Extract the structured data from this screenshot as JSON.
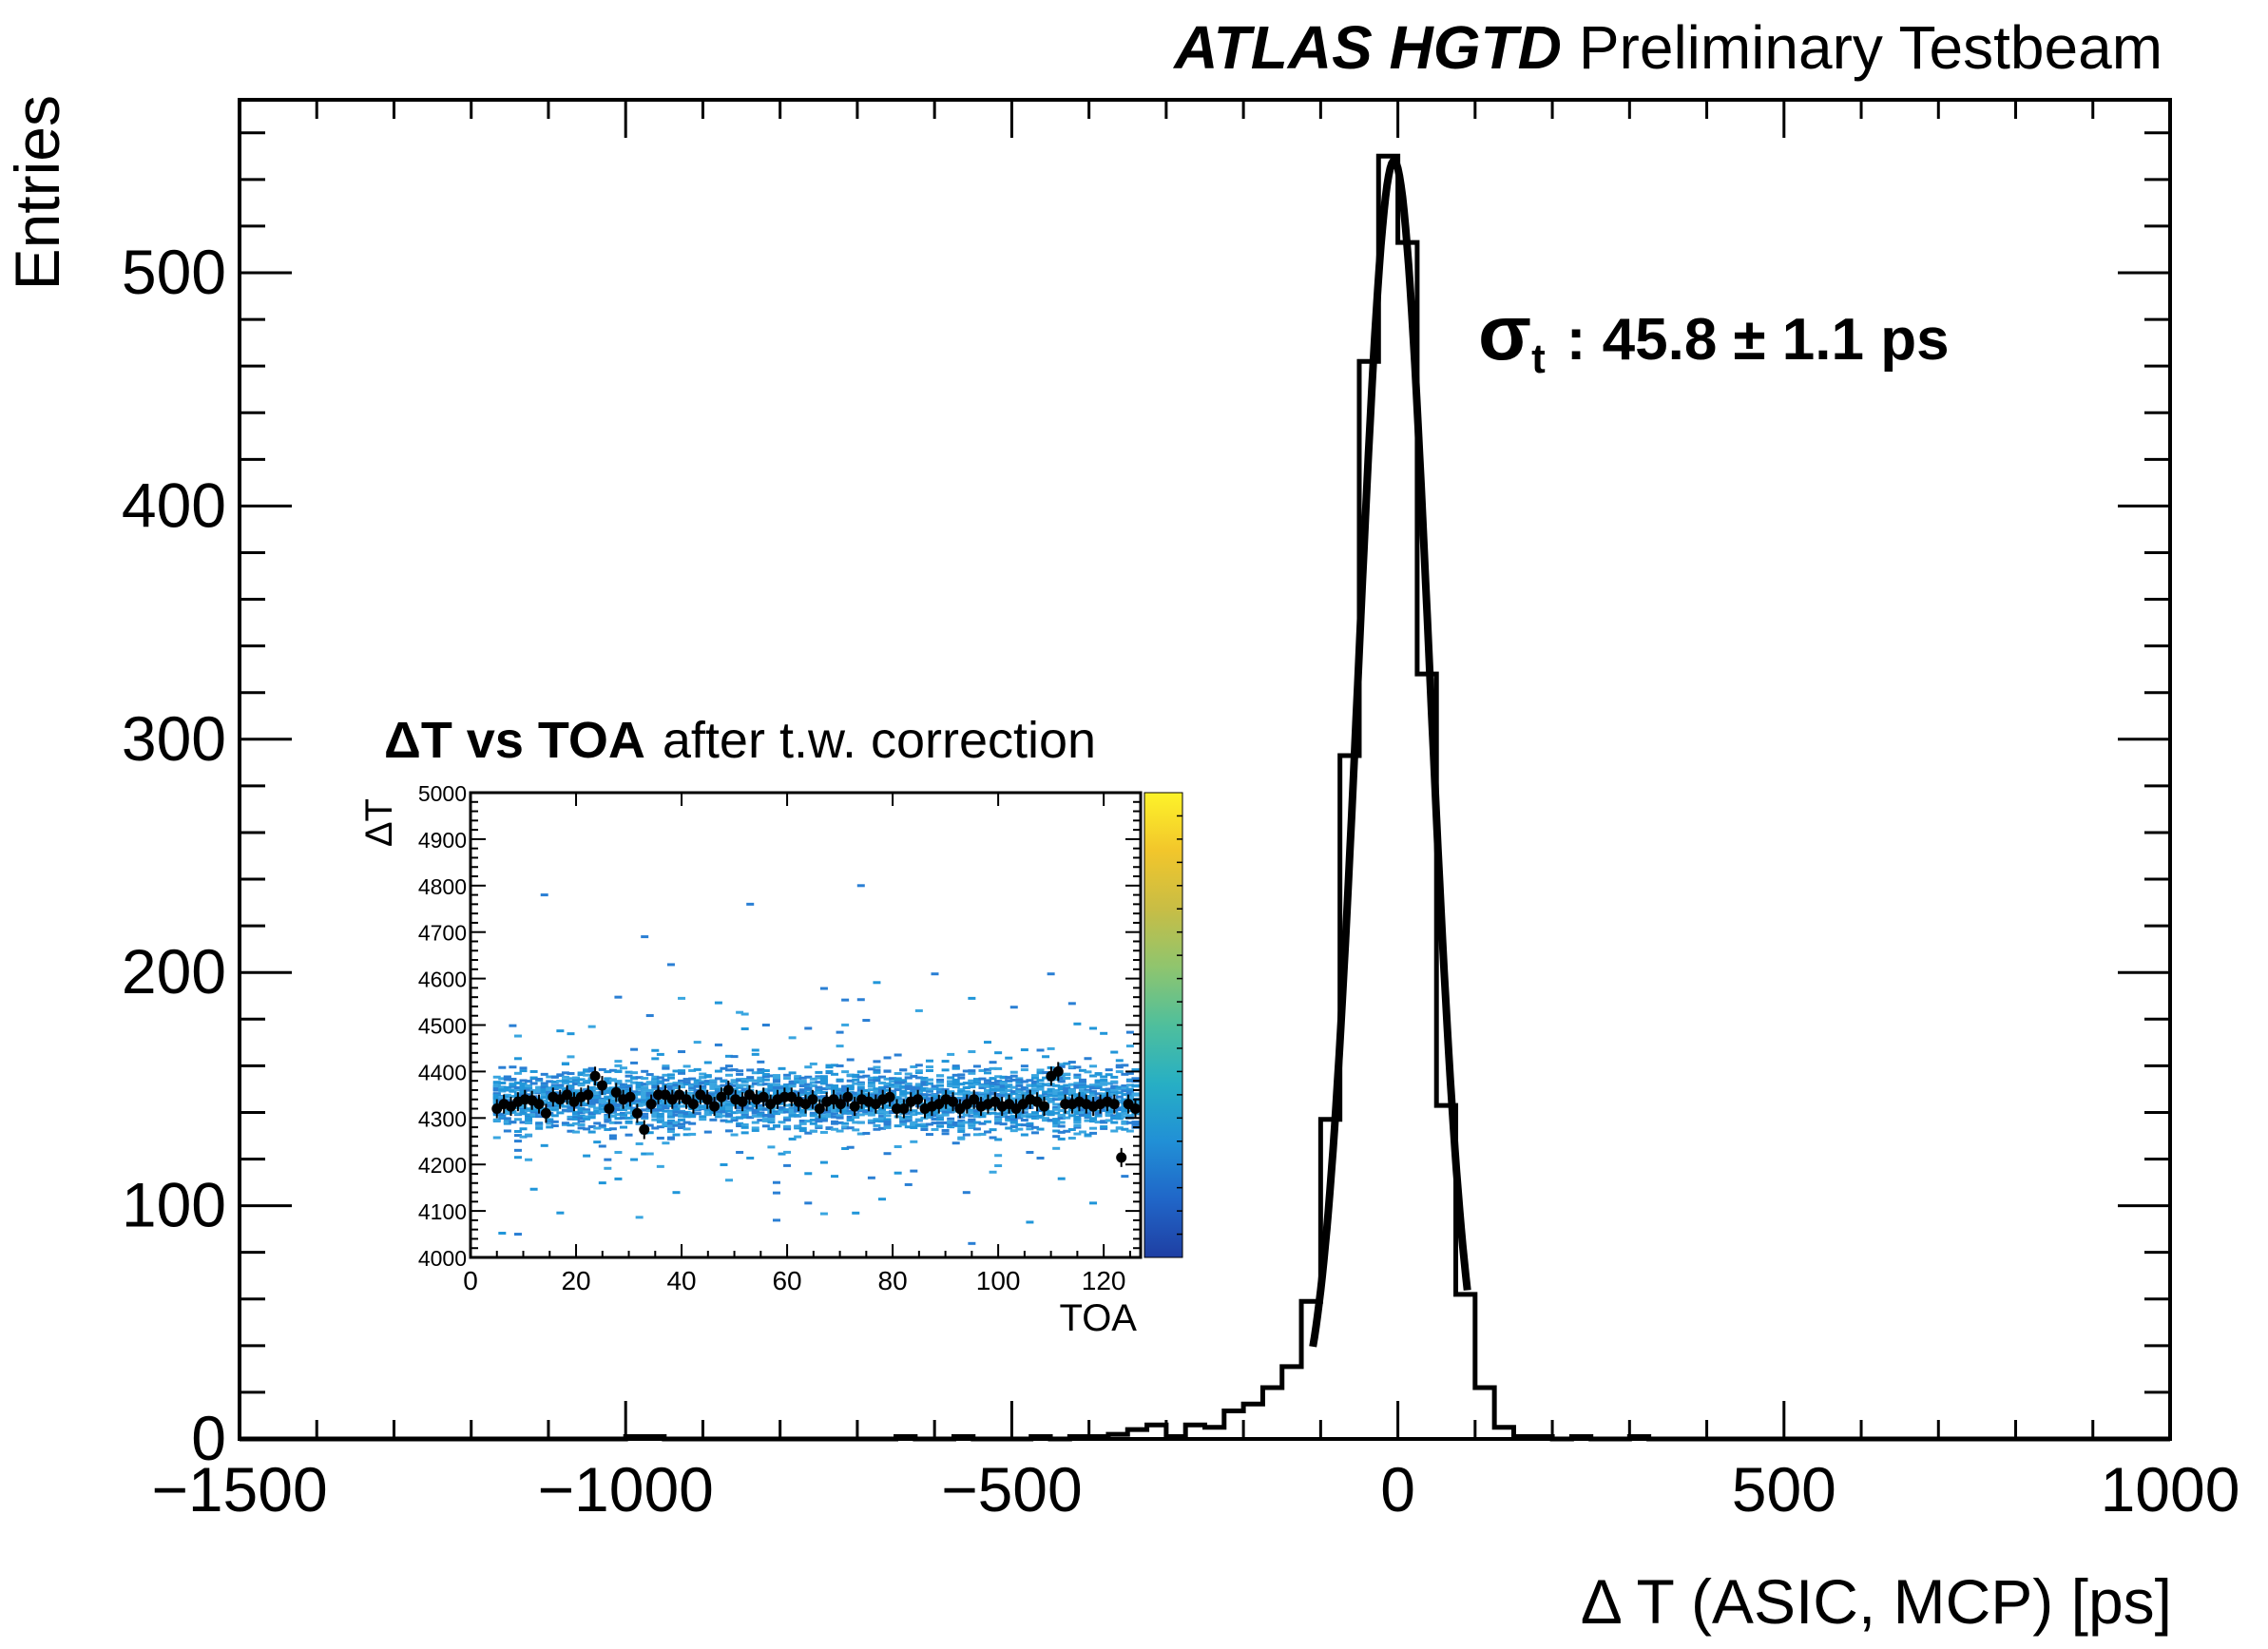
{
  "chart_data": {
    "type": "histogram",
    "experiment": "ATLAS HGTD",
    "status": "Preliminary Testbeam",
    "xlabel": "Δ T (ASIC, MCP) [ps]",
    "ylabel": "Entries",
    "xlim": [
      -1500,
      1000
    ],
    "ylim": [
      0,
      560
    ],
    "x_ticks": [
      -1500,
      -1000,
      -500,
      0,
      500,
      1000
    ],
    "x_tick_labels": [
      "−1500",
      "−1000",
      "−500",
      "0",
      "500",
      "1000"
    ],
    "y_ticks": [
      0,
      100,
      200,
      300,
      400,
      500
    ],
    "y_tick_labels": [
      "0",
      "100",
      "200",
      "300",
      "400",
      "500"
    ],
    "bin_width": 25,
    "bins": [
      {
        "x0": -1000,
        "x1": -975,
        "y": 1
      },
      {
        "x0": -975,
        "x1": -950,
        "y": 1
      },
      {
        "x0": -650,
        "x1": -625,
        "y": 1
      },
      {
        "x0": -575,
        "x1": -550,
        "y": 1
      },
      {
        "x0": -475,
        "x1": -450,
        "y": 1
      },
      {
        "x0": -425,
        "x1": -400,
        "y": 1
      },
      {
        "x0": -400,
        "x1": -375,
        "y": 1
      },
      {
        "x0": -375,
        "x1": -350,
        "y": 2
      },
      {
        "x0": -350,
        "x1": -325,
        "y": 4
      },
      {
        "x0": -325,
        "x1": -300,
        "y": 6
      },
      {
        "x0": -300,
        "x1": -275,
        "y": 1
      },
      {
        "x0": -275,
        "x1": -250,
        "y": 6
      },
      {
        "x0": -250,
        "x1": -225,
        "y": 5
      },
      {
        "x0": -225,
        "x1": -200,
        "y": 12
      },
      {
        "x0": -200,
        "x1": -175,
        "y": 15
      },
      {
        "x0": -175,
        "x1": -150,
        "y": 22
      },
      {
        "x0": -150,
        "x1": -125,
        "y": 31
      },
      {
        "x0": -125,
        "x1": -100,
        "y": 59
      },
      {
        "x0": -100,
        "x1": -75,
        "y": 137
      },
      {
        "x0": -75,
        "x1": -50,
        "y": 293
      },
      {
        "x0": -50,
        "x1": -25,
        "y": 462
      },
      {
        "x0": -25,
        "x1": 0,
        "y": 550
      },
      {
        "x0": 0,
        "x1": 25,
        "y": 513
      },
      {
        "x0": 25,
        "x1": 50,
        "y": 328
      },
      {
        "x0": 50,
        "x1": 75,
        "y": 143
      },
      {
        "x0": 75,
        "x1": 100,
        "y": 62
      },
      {
        "x0": 100,
        "x1": 125,
        "y": 22
      },
      {
        "x0": 125,
        "x1": 150,
        "y": 5
      },
      {
        "x0": 150,
        "x1": 175,
        "y": 1
      },
      {
        "x0": 175,
        "x1": 200,
        "y": 1
      },
      {
        "x0": 225,
        "x1": 250,
        "y": 1
      },
      {
        "x0": 300,
        "x1": 325,
        "y": 1
      }
    ],
    "fit": {
      "function": "gaussian",
      "amplitude": 548,
      "mean": -5,
      "sigma": 45.8,
      "range": [
        -110,
        90
      ]
    },
    "annotation": {
      "symbol": "σ",
      "subscript": "t",
      "text": ": 45.8 ± 1.1 ps"
    },
    "inset": {
      "type": "2d-histogram with profile",
      "title_bold": "ΔT vs TOA",
      "title_rest": "after t.w. correction",
      "xlabel": "TOA",
      "ylabel": "ΔT",
      "xlim": [
        0,
        127
      ],
      "ylim": [
        4000,
        5000
      ],
      "x_ticks": [
        0,
        20,
        40,
        60,
        80,
        100,
        120
      ],
      "x_tick_labels": [
        "0",
        "20",
        "40",
        "60",
        "80",
        "100",
        "120"
      ],
      "y_ticks": [
        4000,
        4100,
        4200,
        4300,
        4400,
        4500,
        4600,
        4700,
        4800,
        4900,
        5000
      ],
      "y_tick_labels": [
        "4000",
        "4100",
        "4200",
        "4300",
        "4400",
        "4500",
        "4600",
        "4700",
        "4800",
        "4900",
        "5000"
      ],
      "profile_y": [
        4320,
        4330,
        4325,
        4335,
        4340,
        4338,
        4330,
        4310,
        4345,
        4340,
        4350,
        4335,
        4345,
        4350,
        4390,
        4370,
        4320,
        4355,
        4340,
        4345,
        4310,
        4275,
        4330,
        4350,
        4350,
        4340,
        4350,
        4340,
        4330,
        4350,
        4340,
        4325,
        4345,
        4360,
        4340,
        4335,
        4350,
        4340,
        4345,
        4330,
        4340,
        4345,
        4345,
        4335,
        4330,
        4340,
        4320,
        4335,
        4340,
        4330,
        4345,
        4325,
        4340,
        4335,
        4330,
        4340,
        4345,
        4320,
        4320,
        4335,
        4340,
        4320,
        4325,
        4330,
        4340,
        4335,
        4320,
        4330,
        4340,
        4325,
        4330,
        4335,
        4325,
        4330,
        4320,
        4330,
        4340,
        4335,
        4325,
        4390,
        4400,
        4330,
        4330,
        4335,
        4330,
        4325,
        4330,
        4335,
        4330,
        4215,
        4330,
        4320
      ],
      "color_scale": [
        "#1f3fa3",
        "#2066c8",
        "#2190d6",
        "#27afc4",
        "#4fbf9c",
        "#8fc56e",
        "#c8bd45",
        "#f2c62b",
        "#fdf32a"
      ]
    }
  }
}
